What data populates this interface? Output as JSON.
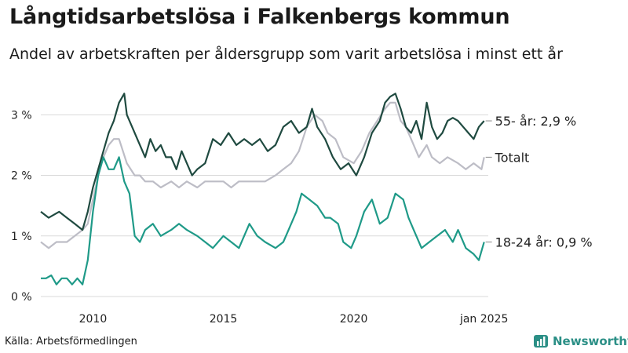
{
  "title": "Långtidsarbetslösa i Falkenbergs kommun",
  "subtitle": "Andel av arbetskraften per åldersgrupp som varit arbetslösa i minst ett år",
  "source": "Källa: Arbetsförmedlingen",
  "brand": "Newsworthy",
  "colors": {
    "s55": "#1f4a40",
    "total": "#bdbdc6",
    "s1824": "#1f9a88",
    "grid": "#d9d9d9",
    "brand": "#2b8f86"
  },
  "chart_data": {
    "type": "line",
    "title": "Långtidsarbetslösa i Falkenbergs kommun",
    "xlabel": "",
    "ylabel": "",
    "xlim": [
      2008,
      2025.1
    ],
    "ylim": [
      0,
      3.6
    ],
    "x_ticks": [
      {
        "value": 2010,
        "label": "2010"
      },
      {
        "value": 2015,
        "label": "2015"
      },
      {
        "value": 2020,
        "label": "2020"
      },
      {
        "value": 2025,
        "label": "jan 2025"
      }
    ],
    "y_ticks": [
      {
        "value": 0,
        "label": "0 %"
      },
      {
        "value": 1,
        "label": "1 %"
      },
      {
        "value": 2,
        "label": "2 %"
      },
      {
        "value": 3,
        "label": "3 %"
      }
    ],
    "grid": true,
    "series": [
      {
        "key": "s55",
        "end_label": "55- år: 2,9 %",
        "x": [
          2008.0,
          2008.3,
          2008.7,
          2009.0,
          2009.3,
          2009.6,
          2009.8,
          2010.0,
          2010.2,
          2010.4,
          2010.6,
          2010.8,
          2011.0,
          2011.2,
          2011.3,
          2011.5,
          2011.7,
          2012.0,
          2012.2,
          2012.4,
          2012.6,
          2012.8,
          2013.0,
          2013.2,
          2013.4,
          2013.6,
          2013.8,
          2014.0,
          2014.3,
          2014.6,
          2014.9,
          2015.2,
          2015.5,
          2015.8,
          2016.1,
          2016.4,
          2016.7,
          2017.0,
          2017.3,
          2017.6,
          2017.9,
          2018.2,
          2018.4,
          2018.6,
          2018.9,
          2019.2,
          2019.5,
          2019.8,
          2020.1,
          2020.4,
          2020.7,
          2021.0,
          2021.2,
          2021.4,
          2021.6,
          2021.8,
          2022.0,
          2022.2,
          2022.4,
          2022.6,
          2022.8,
          2023.0,
          2023.2,
          2023.4,
          2023.6,
          2023.8,
          2024.0,
          2024.2,
          2024.4,
          2024.6,
          2024.8,
          2025.0
        ],
        "y": [
          1.4,
          1.3,
          1.4,
          1.3,
          1.2,
          1.1,
          1.4,
          1.8,
          2.1,
          2.4,
          2.7,
          2.9,
          3.2,
          3.35,
          3.0,
          2.8,
          2.6,
          2.3,
          2.6,
          2.4,
          2.5,
          2.3,
          2.3,
          2.1,
          2.4,
          2.2,
          2.0,
          2.1,
          2.2,
          2.6,
          2.5,
          2.7,
          2.5,
          2.6,
          2.5,
          2.6,
          2.4,
          2.5,
          2.8,
          2.9,
          2.7,
          2.8,
          3.1,
          2.8,
          2.6,
          2.3,
          2.1,
          2.2,
          2.0,
          2.3,
          2.7,
          2.9,
          3.2,
          3.3,
          3.35,
          3.1,
          2.8,
          2.7,
          2.9,
          2.6,
          3.2,
          2.8,
          2.6,
          2.7,
          2.9,
          2.95,
          2.9,
          2.8,
          2.7,
          2.6,
          2.8,
          2.9
        ]
      },
      {
        "key": "total",
        "end_label": "Totalt",
        "x": [
          2008.0,
          2008.3,
          2008.6,
          2009.0,
          2009.3,
          2009.6,
          2009.8,
          2010.0,
          2010.2,
          2010.4,
          2010.6,
          2010.8,
          2011.0,
          2011.3,
          2011.6,
          2011.8,
          2012.0,
          2012.3,
          2012.6,
          2013.0,
          2013.3,
          2013.6,
          2014.0,
          2014.3,
          2014.6,
          2015.0,
          2015.3,
          2015.6,
          2016.0,
          2016.3,
          2016.6,
          2017.0,
          2017.3,
          2017.6,
          2017.9,
          2018.2,
          2018.5,
          2018.8,
          2019.0,
          2019.3,
          2019.6,
          2020.0,
          2020.3,
          2020.6,
          2020.9,
          2021.2,
          2021.4,
          2021.6,
          2021.8,
          2022.0,
          2022.2,
          2022.5,
          2022.8,
          2023.0,
          2023.3,
          2023.6,
          2024.0,
          2024.3,
          2024.6,
          2024.9,
          2025.0
        ],
        "y": [
          0.9,
          0.8,
          0.9,
          0.9,
          1.0,
          1.1,
          1.2,
          1.6,
          2.0,
          2.3,
          2.5,
          2.6,
          2.6,
          2.2,
          2.0,
          2.0,
          1.9,
          1.9,
          1.8,
          1.9,
          1.8,
          1.9,
          1.8,
          1.9,
          1.9,
          1.9,
          1.8,
          1.9,
          1.9,
          1.9,
          1.9,
          2.0,
          2.1,
          2.2,
          2.4,
          2.8,
          3.0,
          2.9,
          2.7,
          2.6,
          2.3,
          2.2,
          2.4,
          2.7,
          2.9,
          3.1,
          3.2,
          3.2,
          2.9,
          2.8,
          2.6,
          2.3,
          2.5,
          2.3,
          2.2,
          2.3,
          2.2,
          2.1,
          2.2,
          2.1,
          2.3
        ]
      },
      {
        "key": "s1824",
        "end_label": "18-24 år: 0,9 %",
        "x": [
          2008.0,
          2008.2,
          2008.4,
          2008.6,
          2008.8,
          2009.0,
          2009.2,
          2009.4,
          2009.6,
          2009.8,
          2010.0,
          2010.2,
          2010.4,
          2010.6,
          2010.8,
          2011.0,
          2011.2,
          2011.4,
          2011.6,
          2011.8,
          2012.0,
          2012.3,
          2012.6,
          2013.0,
          2013.3,
          2013.6,
          2014.0,
          2014.3,
          2014.6,
          2015.0,
          2015.3,
          2015.6,
          2016.0,
          2016.3,
          2016.6,
          2017.0,
          2017.3,
          2017.5,
          2017.8,
          2018.0,
          2018.3,
          2018.6,
          2018.9,
          2019.1,
          2019.4,
          2019.6,
          2019.9,
          2020.1,
          2020.4,
          2020.7,
          2021.0,
          2021.3,
          2021.6,
          2021.9,
          2022.1,
          2022.3,
          2022.6,
          2022.9,
          2023.2,
          2023.5,
          2023.8,
          2024.0,
          2024.3,
          2024.6,
          2024.8,
          2025.0
        ],
        "y": [
          0.3,
          0.3,
          0.35,
          0.2,
          0.3,
          0.3,
          0.2,
          0.3,
          0.2,
          0.6,
          1.4,
          2.0,
          2.3,
          2.1,
          2.1,
          2.3,
          1.9,
          1.7,
          1.0,
          0.9,
          1.1,
          1.2,
          1.0,
          1.1,
          1.2,
          1.1,
          1.0,
          0.9,
          0.8,
          1.0,
          0.9,
          0.8,
          1.2,
          1.0,
          0.9,
          0.8,
          0.9,
          1.1,
          1.4,
          1.7,
          1.6,
          1.5,
          1.3,
          1.3,
          1.2,
          0.9,
          0.8,
          1.0,
          1.4,
          1.6,
          1.2,
          1.3,
          1.7,
          1.6,
          1.3,
          1.1,
          0.8,
          0.9,
          1.0,
          1.1,
          0.9,
          1.1,
          0.8,
          0.7,
          0.6,
          0.9
        ]
      }
    ]
  }
}
